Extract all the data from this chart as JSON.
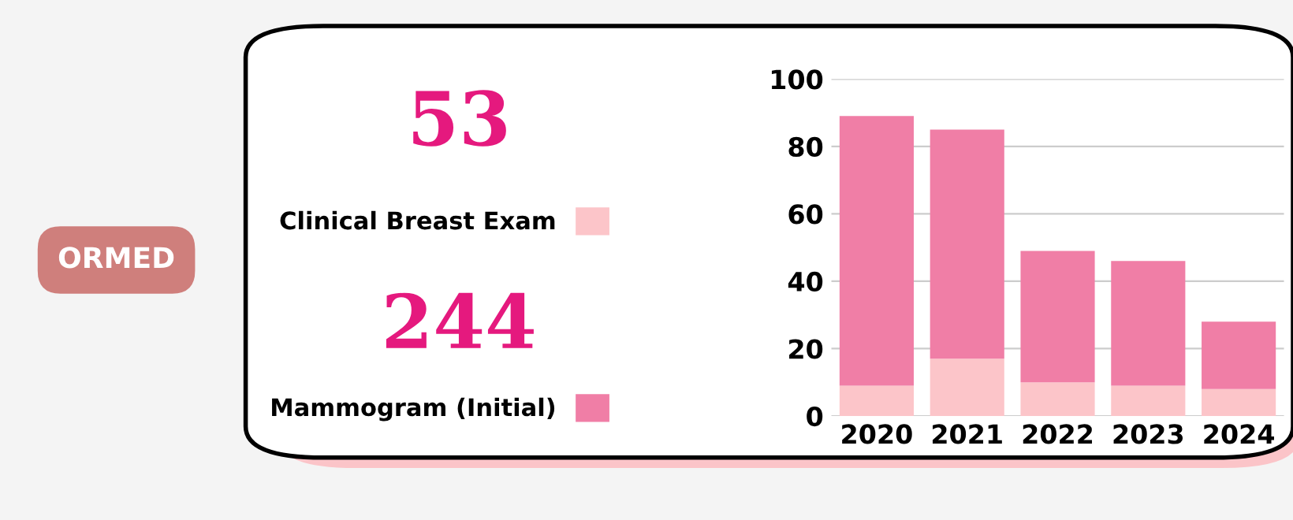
{
  "chart_data": {
    "type": "bar",
    "stacked": true,
    "categories": [
      "2020",
      "2021",
      "2022",
      "2023",
      "2024"
    ],
    "series": [
      {
        "name": "Clinical Breast Exam",
        "color": "#fcc5c9",
        "values": [
          9,
          17,
          10,
          9,
          8
        ]
      },
      {
        "name": "Mammogram (Initial)",
        "color": "#f07ea6",
        "values": [
          80,
          68,
          39,
          37,
          20
        ]
      }
    ],
    "ylim": [
      0,
      100
    ],
    "yticks": [
      0,
      20,
      40,
      60,
      80,
      100
    ],
    "grid": "y",
    "legend": "left",
    "annotations": [
      "53",
      "244",
      "ORMED"
    ]
  }
}
